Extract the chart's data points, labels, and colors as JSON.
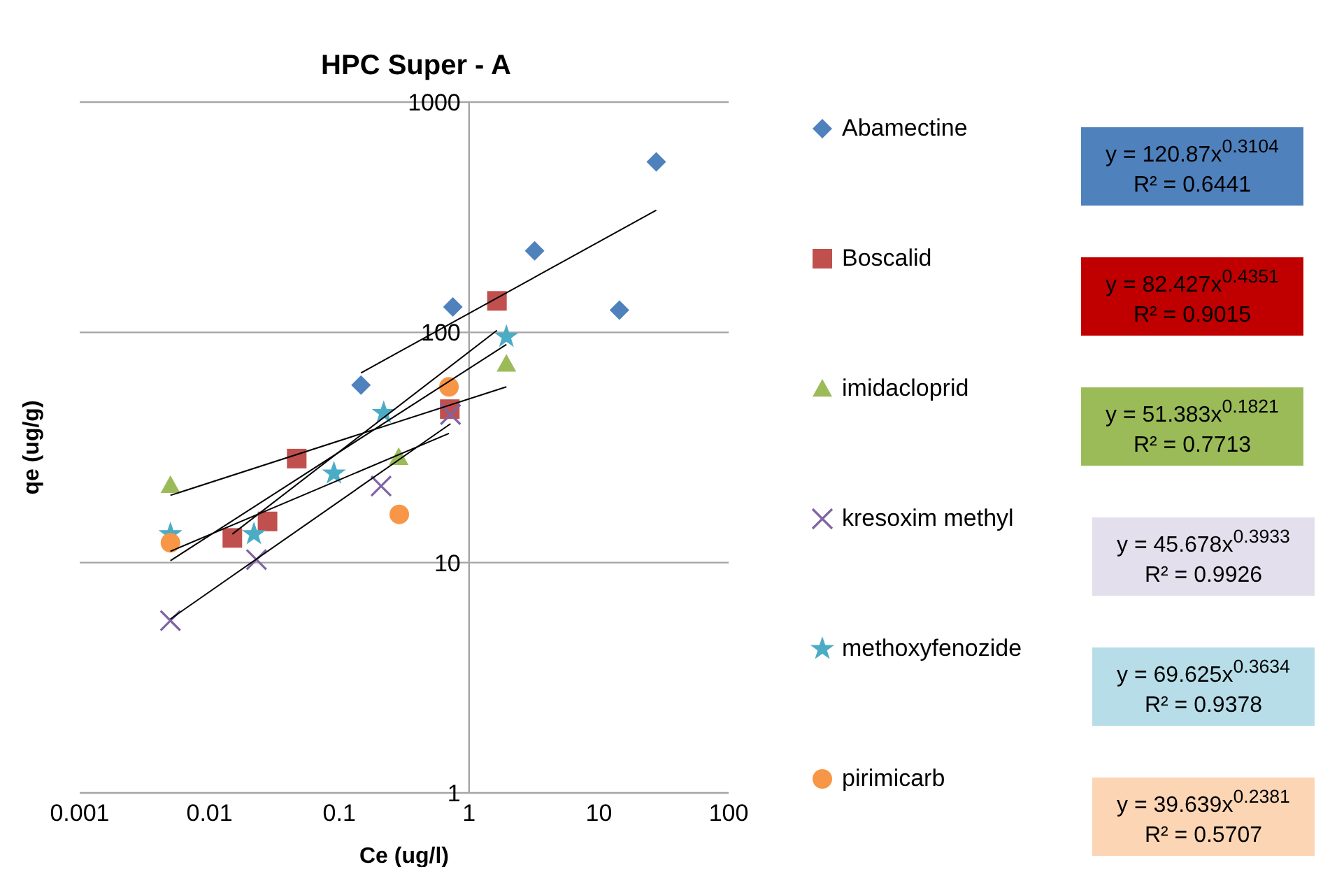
{
  "chart_data": {
    "type": "scatter",
    "title": "HPC Super - A",
    "xlabel": "Ce (ug/l)",
    "ylabel": "qe (ug/g)",
    "log": "xy",
    "grid": "y",
    "legend": "right",
    "xlim": [
      0.001,
      100
    ],
    "xticks": [
      0.001,
      0.01,
      0.1,
      1,
      10,
      100
    ],
    "ylim": [
      1,
      1000
    ],
    "yticks": [
      1,
      10,
      100,
      1000
    ],
    "series": [
      {
        "name": "Abamectine",
        "color": "#4f81bd",
        "marker": "diamond",
        "x": [
          0.147,
          0.75,
          3.2,
          14.4,
          27.7
        ],
        "values": [
          59,
          129,
          226,
          125,
          550
        ]
      },
      {
        "name": "Boscalid",
        "color": "#c0504d",
        "marker": "square",
        "x": [
          0.015,
          0.028,
          0.047,
          0.71,
          1.64
        ],
        "values": [
          12.8,
          15.1,
          28.3,
          46.4,
          137
        ]
      },
      {
        "name": "imidacloprid",
        "color": "#9bbb59",
        "marker": "triangle",
        "x": [
          0.005,
          0.287,
          1.94
        ],
        "values": [
          21.7,
          28.7,
          73
        ]
      },
      {
        "name": "kresoxim methyl",
        "color": "#8064a2",
        "marker": "cross",
        "x": [
          0.005,
          0.023,
          0.21,
          0.72
        ],
        "values": [
          5.6,
          10.3,
          21.5,
          44
        ]
      },
      {
        "name": "methoxyfenozide",
        "color": "#4bacc6",
        "marker": "star",
        "x": [
          0.005,
          0.022,
          0.091,
          0.22,
          1.94
        ],
        "values": [
          13.3,
          13.3,
          24.4,
          44.7,
          95.7
        ]
      },
      {
        "name": "pirimicarb",
        "color": "#f79646",
        "marker": "circle",
        "x": [
          0.005,
          0.29,
          0.7
        ],
        "values": [
          12.2,
          16.2,
          58
        ]
      },
      {
        "type": "line",
        "color": "#000000",
        "marker": "none",
        "x": [
          0.147,
          27.7
        ],
        "values": [
          66.7,
          339
        ]
      },
      {
        "type": "line",
        "color": "#000000",
        "marker": "none",
        "x": [
          0.015,
          1.64
        ],
        "values": [
          13.3,
          102
        ]
      },
      {
        "type": "line",
        "color": "#000000",
        "marker": "none",
        "x": [
          0.005,
          1.94
        ],
        "values": [
          19.6,
          58
        ]
      },
      {
        "type": "line",
        "color": "#000000",
        "marker": "none",
        "x": [
          0.005,
          0.72
        ],
        "values": [
          5.69,
          40.1
        ]
      },
      {
        "type": "line",
        "color": "#000000",
        "marker": "none",
        "x": [
          0.005,
          1.94
        ],
        "values": [
          10.2,
          88.6
        ]
      },
      {
        "type": "line",
        "color": "#000000",
        "marker": "none",
        "x": [
          0.005,
          0.7
        ],
        "values": [
          11.2,
          36.4
        ]
      }
    ],
    "annotations": [
      "y = 120.87x$^{0.3104}$",
      "R² = 0.6441",
      "y = 82.427x$^{0.4351}$",
      "R² = 0.9015",
      "y = 51.383x$^{0.1821}$",
      "R² = 0.7713",
      "y = 45.678x$^{0.3933}$",
      "R² = 0.9926",
      "y = 69.625x$^{0.3634}$",
      "R² = 0.9378",
      "y = 39.639x$^{0.2381}$",
      "R² = 0.5707"
    ]
  }
}
